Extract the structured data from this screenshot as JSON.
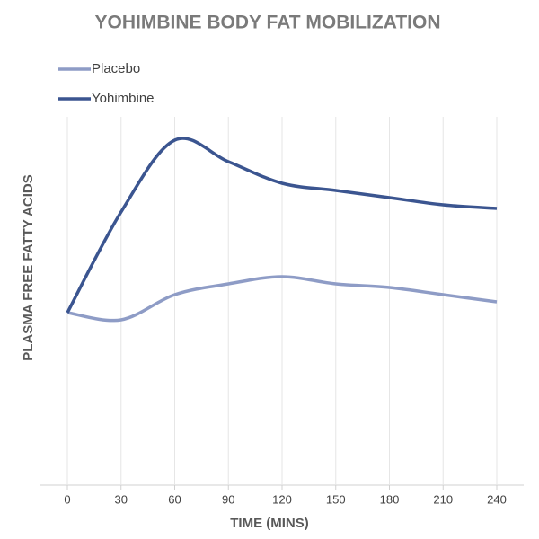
{
  "chart_data": {
    "type": "line",
    "title": "YOHIMBINE BODY FAT MOBILIZATION",
    "x_label": "TIME (MINS)",
    "y_label": "PLASMA FREE FATTY ACIDS",
    "x": [
      0,
      30,
      60,
      90,
      120,
      150,
      180,
      210,
      240
    ],
    "xlim": [
      0,
      240
    ],
    "xticks": [
      0,
      30,
      60,
      90,
      120,
      150,
      180,
      210,
      240
    ],
    "ylim": [
      0,
      100
    ],
    "grid": true,
    "legend": "upper-left",
    "series": [
      {
        "name": "Placebo",
        "color": "#8e9cc6",
        "values": [
          48,
          46,
          53,
          56,
          58,
          56,
          55,
          53,
          51
        ]
      },
      {
        "name": "Yohimbine",
        "color": "#3b5590",
        "values": [
          48,
          76,
          96,
          90,
          84,
          82,
          80,
          78,
          77
        ]
      }
    ]
  }
}
